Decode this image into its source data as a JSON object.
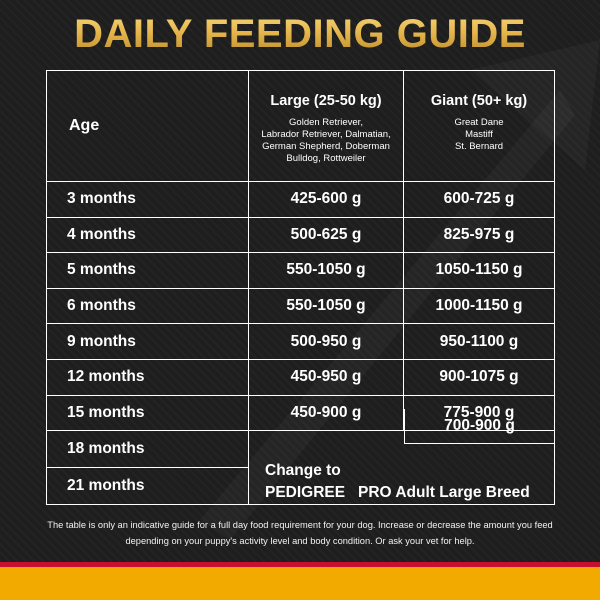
{
  "title": "DAILY FEEDING GUIDE",
  "table": {
    "header": {
      "age": "Age",
      "large": {
        "title": "Large (25-50 kg)",
        "breeds": [
          "Golden Retriever,",
          "Labrador Retriever, Dalmatian,",
          "German Shepherd, Doberman",
          "Bulldog, Rottweiler"
        ]
      },
      "giant": {
        "title": "Giant (50+ kg)",
        "breeds": [
          "Great Dane",
          "Mastiff",
          "St. Bernard"
        ]
      }
    },
    "rows": [
      {
        "age": "3 months",
        "large": "425-600 g",
        "giant": "600-725 g"
      },
      {
        "age": "4 months",
        "large": "500-625 g",
        "giant": "825-975 g"
      },
      {
        "age": "5 months",
        "large": "550-1050 g",
        "giant": "1050-1150 g"
      },
      {
        "age": "6 months",
        "large": "550-1050 g",
        "giant": "1000-1150 g"
      },
      {
        "age": "9 months",
        "large": "500-950 g",
        "giant": "950-1100 g"
      },
      {
        "age": "12 months",
        "large": "450-950 g",
        "giant": "900-1075 g"
      },
      {
        "age": "15 months",
        "large": "450-900 g",
        "giant": "775-900 g"
      }
    ],
    "row_18": {
      "age": "18 months",
      "giant": "700-900 g"
    },
    "row_21": {
      "age": "21 months"
    },
    "change": {
      "line1": "Change to",
      "line2": "PEDIGREE   PRO Adult Large Breed"
    }
  },
  "footnote": "The table is only an indicative guide for a full day food requirement for your dog. Increase or decrease the amount you feed depending on your puppy's activity level and body condition. Or ask your vet for help.",
  "colors": {
    "title_gold": "#e6b64c",
    "background": "#1e1e1e",
    "band_red": "#c8102e",
    "band_yellow": "#f2a900"
  }
}
